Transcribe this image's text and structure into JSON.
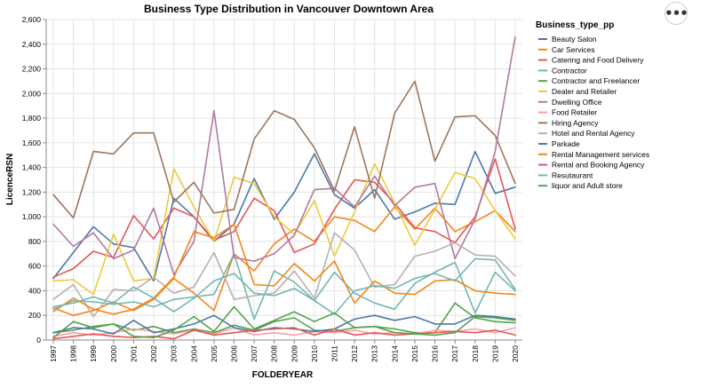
{
  "menu": {
    "icon": "more-horizontal-icon",
    "glyph": "•••"
  },
  "chart_data": {
    "type": "line",
    "title": "Business Type Distribution in Vancouver Downtown Area",
    "xlabel": "FOLDERYEAR",
    "ylabel": "LicenceRSN",
    "legend_title": "Business_type_pp",
    "legend_position": "right",
    "grid": true,
    "ylim": [
      0,
      2600
    ],
    "yticks": [
      0,
      200,
      400,
      600,
      800,
      1000,
      1200,
      1400,
      1600,
      1800,
      2000,
      2200,
      2400,
      2600
    ],
    "x": [
      1997,
      1998,
      1999,
      2000,
      2001,
      2002,
      2003,
      2004,
      2005,
      2006,
      2007,
      2008,
      2009,
      2010,
      2011,
      2012,
      2013,
      2014,
      2015,
      2016,
      2017,
      2018,
      2019,
      2020
    ],
    "series": [
      {
        "name": "Beauty Salon",
        "color": "#4c78a8",
        "values": [
          500,
          710,
          920,
          780,
          750,
          480,
          1150,
          1000,
          800,
          940,
          1310,
          980,
          1200,
          1510,
          1180,
          1070,
          1220,
          980,
          1040,
          1110,
          1100,
          1530,
          1190,
          1240
        ]
      },
      {
        "name": "Car Services",
        "color": "#f58518",
        "values": [
          260,
          200,
          240,
          310,
          240,
          330,
          500,
          380,
          240,
          700,
          560,
          780,
          900,
          800,
          1000,
          970,
          880,
          1080,
          900,
          1070,
          880,
          960,
          1050,
          880
        ]
      },
      {
        "name": "Catering and Food Delivery",
        "color": "#e45756",
        "values": [
          510,
          580,
          720,
          670,
          1010,
          820,
          1070,
          1000,
          810,
          880,
          1150,
          1050,
          710,
          780,
          1060,
          1300,
          1280,
          1110,
          910,
          880,
          790,
          1000,
          1470,
          900
        ]
      },
      {
        "name": "Contractor",
        "color": "#72b7b2",
        "values": [
          250,
          320,
          310,
          290,
          310,
          270,
          330,
          350,
          370,
          700,
          170,
          560,
          470,
          320,
          550,
          380,
          300,
          250,
          460,
          550,
          630,
          220,
          550,
          400
        ]
      },
      {
        "name": "Contractor and Freelancer",
        "color": "#54a24b",
        "values": [
          60,
          80,
          110,
          130,
          80,
          110,
          60,
          90,
          60,
          120,
          80,
          150,
          180,
          80,
          70,
          100,
          110,
          90,
          60,
          60,
          300,
          180,
          150,
          140
        ]
      },
      {
        "name": "Dealer and Retailer",
        "color": "#eeca3b",
        "values": [
          480,
          490,
          370,
          860,
          480,
          500,
          1390,
          1080,
          800,
          1320,
          1270,
          1000,
          860,
          1130,
          680,
          1040,
          1430,
          1110,
          770,
          1060,
          1360,
          1310,
          1050,
          820
        ]
      },
      {
        "name": "Dwelling Office",
        "color": "#b279a2",
        "values": [
          940,
          760,
          870,
          660,
          730,
          1070,
          530,
          800,
          1860,
          670,
          640,
          700,
          850,
          1220,
          1230,
          1080,
          1330,
          1090,
          1240,
          1270,
          660,
          980,
          1530,
          2460
        ]
      },
      {
        "name": "Food Retailer",
        "color": "#ff9da6",
        "values": [
          30,
          60,
          40,
          60,
          90,
          70,
          50,
          80,
          50,
          100,
          40,
          60,
          40,
          70,
          60,
          80,
          50,
          60,
          50,
          80,
          70,
          90,
          60,
          100
        ]
      },
      {
        "name": "Hiring Agency",
        "color": "#9d755d",
        "values": [
          1180,
          990,
          1530,
          1510,
          1680,
          1680,
          1120,
          1280,
          1030,
          1060,
          1630,
          1860,
          1790,
          1560,
          1210,
          1730,
          1150,
          1840,
          2100,
          1450,
          1810,
          1820,
          1660,
          1270
        ]
      },
      {
        "name": "Hotel and Rental Agency",
        "color": "#bab0ac",
        "values": [
          330,
          450,
          190,
          410,
          400,
          510,
          380,
          430,
          710,
          330,
          360,
          380,
          560,
          340,
          870,
          730,
          430,
          450,
          680,
          720,
          790,
          690,
          680,
          520
        ]
      },
      {
        "name": "Parkade",
        "color": "#4c78a8",
        "values": [
          60,
          100,
          90,
          50,
          160,
          60,
          90,
          130,
          200,
          100,
          70,
          100,
          90,
          70,
          90,
          170,
          200,
          160,
          190,
          130,
          130,
          200,
          190,
          170
        ]
      },
      {
        "name": "Rental Management services",
        "color": "#f58518",
        "values": [
          230,
          340,
          250,
          210,
          250,
          340,
          510,
          880,
          830,
          940,
          450,
          440,
          620,
          480,
          640,
          300,
          480,
          380,
          370,
          480,
          490,
          400,
          380,
          370
        ]
      },
      {
        "name": "Rental and Booking Agency",
        "color": "#e45756",
        "values": [
          10,
          30,
          50,
          30,
          20,
          30,
          10,
          80,
          40,
          60,
          80,
          90,
          100,
          40,
          90,
          40,
          60,
          40,
          50,
          60,
          70,
          60,
          80,
          40
        ]
      },
      {
        "name": "Resutaurant",
        "color": "#72b7b2",
        "values": [
          270,
          300,
          350,
          300,
          430,
          340,
          230,
          340,
          480,
          540,
          380,
          360,
          420,
          320,
          210,
          400,
          440,
          420,
          500,
          540,
          480,
          660,
          650,
          410
        ]
      },
      {
        "name": "liquor and Adult store",
        "color": "#54a24b",
        "values": [
          20,
          150,
          100,
          130,
          30,
          20,
          80,
          190,
          70,
          270,
          90,
          160,
          230,
          150,
          220,
          100,
          110,
          60,
          50,
          40,
          60,
          190,
          180,
          160
        ]
      }
    ]
  }
}
